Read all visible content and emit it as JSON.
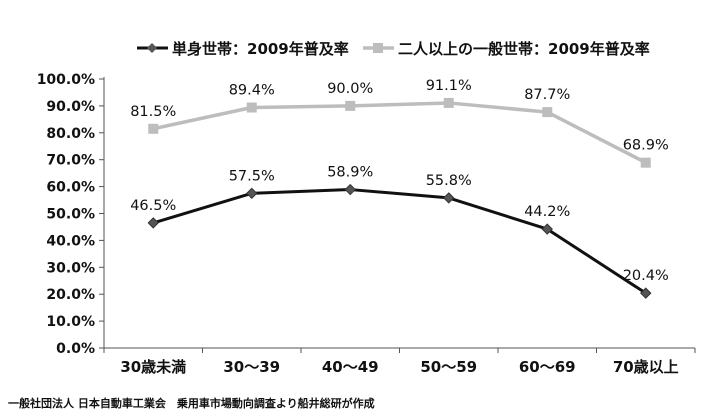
{
  "chart_data": {
    "type": "line",
    "categories": [
      "30歳未満",
      "30～39",
      "40～49",
      "50～59",
      "60～69",
      "70歳以上"
    ],
    "series": [
      {
        "name": "単身世帯：2009年普及率",
        "values": [
          46.5,
          57.5,
          58.9,
          55.8,
          44.2,
          20.4
        ],
        "labels": [
          "46.5%",
          "57.5%",
          "58.9%",
          "55.8%",
          "44.2%",
          "20.4%"
        ],
        "color": "#111111",
        "marker": "diamond"
      },
      {
        "name": "二人以上の一般世帯：2009年普及率",
        "values": [
          81.5,
          89.4,
          90.0,
          91.1,
          87.7,
          68.9
        ],
        "labels": [
          "81.5%",
          "89.4%",
          "90.0%",
          "91.1%",
          "87.7%",
          "68.9%"
        ],
        "color": "#bdbdbd",
        "marker": "square"
      }
    ],
    "ylim": [
      0,
      100
    ],
    "yticks": [
      0,
      10,
      20,
      30,
      40,
      50,
      60,
      70,
      80,
      90,
      100
    ],
    "ytick_labels": [
      "0.0%",
      "10.0%",
      "20.0%",
      "30.0%",
      "40.0%",
      "50.0%",
      "60.0%",
      "70.0%",
      "80.0%",
      "90.0%",
      "100.0%"
    ],
    "grid": false,
    "legend_position": "top"
  },
  "source_note": "一般社団法人 日本自動車工業会　乗用車市場動向調査より船井総研が作成"
}
